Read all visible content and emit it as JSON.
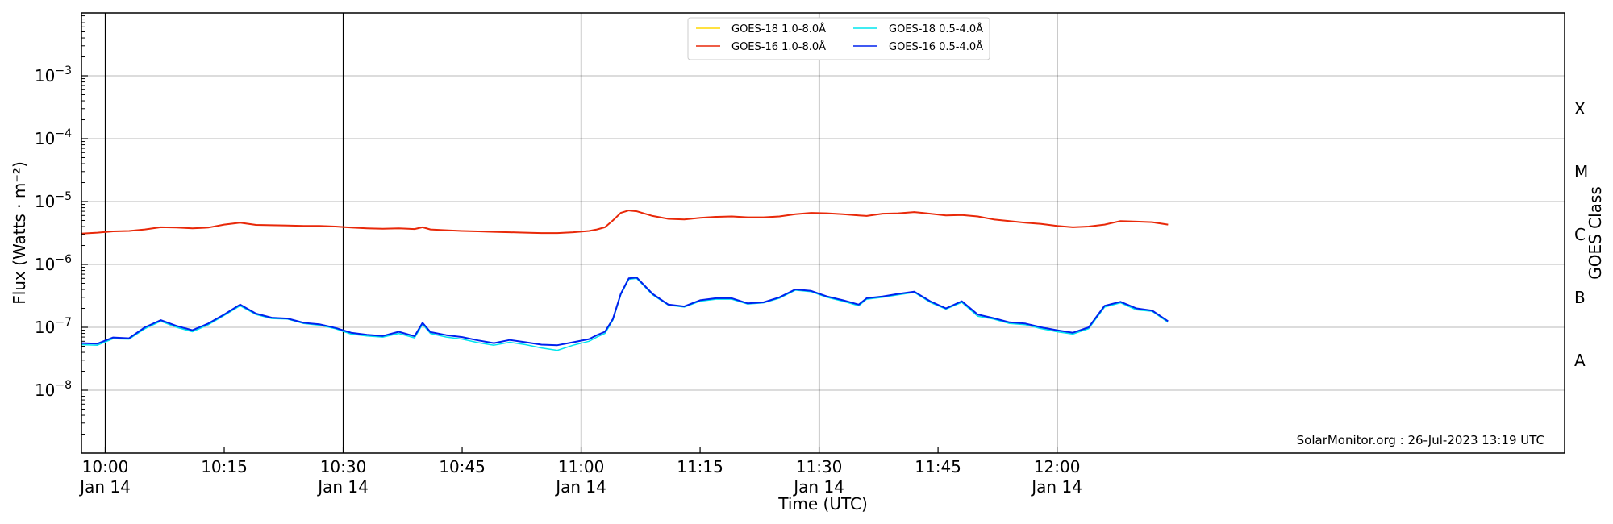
{
  "chart_data": {
    "type": "line",
    "xlabel": "Time (UTC)",
    "ylabel": "Flux (Watts · m⁻²)",
    "ylabel_right": "GOES Class",
    "y_scale": "log",
    "ylim": [
      1e-09,
      0.01
    ],
    "xlim": [
      "09:57",
      "13:04"
    ],
    "grid": "horizontal",
    "legend_position": "top-center",
    "credit": "SolarMonitor.org : 26-Jul-2023 13:19 UTC",
    "y_ticks": [
      {
        "value": 1e-08,
        "base": "10",
        "exp": "−8"
      },
      {
        "value": 1e-07,
        "base": "10",
        "exp": "−7"
      },
      {
        "value": 1e-06,
        "base": "10",
        "exp": "−6"
      },
      {
        "value": 1e-05,
        "base": "10",
        "exp": "−5"
      },
      {
        "value": 0.0001,
        "base": "10",
        "exp": "−4"
      },
      {
        "value": 0.001,
        "base": "10",
        "exp": "−3"
      }
    ],
    "x_ticks": [
      {
        "time": "10:00",
        "label": "10:00",
        "sublabel": "Jan 14",
        "vline": true
      },
      {
        "time": "10:15",
        "label": "10:15",
        "sublabel": "",
        "vline": false
      },
      {
        "time": "10:30",
        "label": "10:30",
        "sublabel": "Jan 14",
        "vline": true
      },
      {
        "time": "10:45",
        "label": "10:45",
        "sublabel": "",
        "vline": false
      },
      {
        "time": "11:00",
        "label": "11:00",
        "sublabel": "Jan 14",
        "vline": true
      },
      {
        "time": "11:15",
        "label": "11:15",
        "sublabel": "",
        "vline": false
      },
      {
        "time": "11:30",
        "label": "11:30",
        "sublabel": "Jan 14",
        "vline": true
      },
      {
        "time": "11:45",
        "label": "11:45",
        "sublabel": "",
        "vline": false
      },
      {
        "time": "12:00",
        "label": "12:00",
        "sublabel": "Jan 14",
        "vline": true
      }
    ],
    "class_labels": [
      {
        "label": "A",
        "level": 3e-08
      },
      {
        "label": "B",
        "level": 3e-07
      },
      {
        "label": "C",
        "level": 3e-06
      },
      {
        "label": "M",
        "level": 3e-05
      },
      {
        "label": "X",
        "level": 0.0003
      }
    ],
    "series": [
      {
        "name": "GOES-18 1.0-8.0Å",
        "color": "#ffd700",
        "width": 1.5,
        "x": [
          "09:57",
          "09:59",
          "10:01",
          "10:03",
          "10:05",
          "10:07",
          "10:09",
          "10:11",
          "10:13",
          "10:15",
          "10:17",
          "10:19",
          "10:21",
          "10:23",
          "10:25",
          "10:27",
          "10:29",
          "10:31",
          "10:33",
          "10:35",
          "10:37",
          "10:39",
          "10:40",
          "10:41",
          "10:43",
          "10:45",
          "10:47",
          "10:49",
          "10:51",
          "10:53",
          "10:55",
          "10:57",
          "10:59",
          "11:01",
          "11:02",
          "11:03",
          "11:04",
          "11:05",
          "11:06",
          "11:07",
          "11:09",
          "11:11",
          "11:13",
          "11:15",
          "11:17",
          "11:19",
          "11:21",
          "11:23",
          "11:25",
          "11:27",
          "11:29",
          "11:31",
          "11:33",
          "11:35",
          "11:36",
          "11:38",
          "11:40",
          "11:42",
          "11:44",
          "11:46",
          "11:48",
          "11:50",
          "11:52",
          "11:54",
          "11:56",
          "11:58",
          "12:00",
          "12:02",
          "12:04",
          "12:06",
          "12:08",
          "12:10",
          "12:12",
          "12:14"
        ],
        "values": [
          3.1e-06,
          3.2e-06,
          3.35e-06,
          3.4e-06,
          3.6e-06,
          3.9e-06,
          3.85e-06,
          3.75e-06,
          3.85e-06,
          4.3e-06,
          4.6e-06,
          4.25e-06,
          4.2e-06,
          4.15e-06,
          4.1e-06,
          4.1e-06,
          4e-06,
          3.85e-06,
          3.75e-06,
          3.7e-06,
          3.75e-06,
          3.65e-06,
          3.9e-06,
          3.6e-06,
          3.5e-06,
          3.4e-06,
          3.35e-06,
          3.3e-06,
          3.25e-06,
          3.2e-06,
          3.15e-06,
          3.15e-06,
          3.25e-06,
          3.4e-06,
          3.6e-06,
          3.9e-06,
          5e-06,
          6.6e-06,
          7.2e-06,
          7e-06,
          5.9e-06,
          5.3e-06,
          5.2e-06,
          5.5e-06,
          5.7e-06,
          5.8e-06,
          5.6e-06,
          5.6e-06,
          5.8e-06,
          6.3e-06,
          6.6e-06,
          6.5e-06,
          6.3e-06,
          6e-06,
          5.9e-06,
          6.4e-06,
          6.5e-06,
          6.8e-06,
          6.4e-06,
          6e-06,
          6.1e-06,
          5.8e-06,
          5.2e-06,
          4.9e-06,
          4.6e-06,
          4.4e-06,
          4.1e-06,
          3.9e-06,
          4e-06,
          4.3e-06,
          4.9e-06,
          4.8e-06,
          4.7e-06,
          4.3e-06
        ]
      },
      {
        "name": "GOES-16 1.0-8.0Å",
        "color": "#e8280a",
        "width": 2,
        "x": [
          "09:57",
          "09:59",
          "10:01",
          "10:03",
          "10:05",
          "10:07",
          "10:09",
          "10:11",
          "10:13",
          "10:15",
          "10:17",
          "10:19",
          "10:21",
          "10:23",
          "10:25",
          "10:27",
          "10:29",
          "10:31",
          "10:33",
          "10:35",
          "10:37",
          "10:39",
          "10:40",
          "10:41",
          "10:43",
          "10:45",
          "10:47",
          "10:49",
          "10:51",
          "10:53",
          "10:55",
          "10:57",
          "10:59",
          "11:01",
          "11:02",
          "11:03",
          "11:04",
          "11:05",
          "11:06",
          "11:07",
          "11:09",
          "11:11",
          "11:13",
          "11:15",
          "11:17",
          "11:19",
          "11:21",
          "11:23",
          "11:25",
          "11:27",
          "11:29",
          "11:31",
          "11:33",
          "11:35",
          "11:36",
          "11:38",
          "11:40",
          "11:42",
          "11:44",
          "11:46",
          "11:48",
          "11:50",
          "11:52",
          "11:54",
          "11:56",
          "11:58",
          "12:00",
          "12:02",
          "12:04",
          "12:06",
          "12:08",
          "12:10",
          "12:12",
          "12:14"
        ],
        "values": [
          3.1e-06,
          3.2e-06,
          3.35e-06,
          3.4e-06,
          3.6e-06,
          3.9e-06,
          3.85e-06,
          3.75e-06,
          3.85e-06,
          4.3e-06,
          4.6e-06,
          4.25e-06,
          4.2e-06,
          4.15e-06,
          4.1e-06,
          4.1e-06,
          4e-06,
          3.85e-06,
          3.75e-06,
          3.7e-06,
          3.75e-06,
          3.65e-06,
          3.9e-06,
          3.6e-06,
          3.5e-06,
          3.4e-06,
          3.35e-06,
          3.3e-06,
          3.25e-06,
          3.2e-06,
          3.15e-06,
          3.15e-06,
          3.25e-06,
          3.4e-06,
          3.6e-06,
          3.9e-06,
          5e-06,
          6.6e-06,
          7.2e-06,
          7e-06,
          5.9e-06,
          5.3e-06,
          5.2e-06,
          5.5e-06,
          5.7e-06,
          5.8e-06,
          5.6e-06,
          5.6e-06,
          5.8e-06,
          6.3e-06,
          6.6e-06,
          6.5e-06,
          6.3e-06,
          6e-06,
          5.9e-06,
          6.4e-06,
          6.5e-06,
          6.8e-06,
          6.4e-06,
          6e-06,
          6.1e-06,
          5.8e-06,
          5.2e-06,
          4.9e-06,
          4.6e-06,
          4.4e-06,
          4.1e-06,
          3.9e-06,
          4e-06,
          4.3e-06,
          4.9e-06,
          4.8e-06,
          4.7e-06,
          4.3e-06
        ]
      },
      {
        "name": "GOES-18 0.5-4.0Å",
        "color": "#00e5ee",
        "width": 1.5,
        "x": [
          "09:57",
          "09:59",
          "10:01",
          "10:03",
          "10:05",
          "10:07",
          "10:09",
          "10:11",
          "10:13",
          "10:15",
          "10:17",
          "10:19",
          "10:21",
          "10:23",
          "10:25",
          "10:27",
          "10:29",
          "10:31",
          "10:33",
          "10:35",
          "10:37",
          "10:39",
          "10:40",
          "10:41",
          "10:43",
          "10:45",
          "10:47",
          "10:49",
          "10:51",
          "10:53",
          "10:55",
          "10:57",
          "10:59",
          "11:01",
          "11:02",
          "11:03",
          "11:04",
          "11:05",
          "11:06",
          "11:07",
          "11:09",
          "11:11",
          "11:13",
          "11:15",
          "11:17",
          "11:19",
          "11:21",
          "11:23",
          "11:25",
          "11:27",
          "11:29",
          "11:31",
          "11:33",
          "11:35",
          "11:36",
          "11:38",
          "11:40",
          "11:42",
          "11:44",
          "11:46",
          "11:48",
          "11:50",
          "11:52",
          "11:54",
          "11:56",
          "11:58",
          "12:00",
          "12:02",
          "12:04",
          "12:06",
          "12:08",
          "12:10",
          "12:12",
          "12:14"
        ],
        "values": [
          5.3e-08,
          5.2e-08,
          6.6e-08,
          6.5e-08,
          9.5e-08,
          1.25e-07,
          1e-07,
          8.5e-08,
          1.1e-07,
          1.55e-07,
          2.2e-07,
          1.6e-07,
          1.38e-07,
          1.35e-07,
          1.15e-07,
          1.08e-07,
          9.5e-08,
          7.8e-08,
          7.3e-08,
          7e-08,
          8e-08,
          6.8e-08,
          1.12e-07,
          8e-08,
          7e-08,
          6.5e-08,
          5.7e-08,
          5.2e-08,
          5.8e-08,
          5.3e-08,
          4.7e-08,
          4.3e-08,
          5.2e-08,
          6e-08,
          7e-08,
          8e-08,
          1.3e-07,
          3.3e-07,
          5.8e-07,
          6e-07,
          3.3e-07,
          2.25e-07,
          2.1e-07,
          2.6e-07,
          2.8e-07,
          2.8e-07,
          2.35e-07,
          2.45e-07,
          2.9e-07,
          3.9e-07,
          3.7e-07,
          3e-07,
          2.6e-07,
          2.2e-07,
          2.8e-07,
          3e-07,
          3.3e-07,
          3.6e-07,
          2.5e-07,
          1.95e-07,
          2.5e-07,
          1.5e-07,
          1.35e-07,
          1.15e-07,
          1.1e-07,
          9.5e-08,
          8.5e-08,
          7.8e-08,
          9.5e-08,
          2.1e-07,
          2.45e-07,
          1.9e-07,
          1.8e-07,
          1.2e-07
        ]
      },
      {
        "name": "GOES-16 0.5-4.0Å",
        "color": "#0022ee",
        "width": 2,
        "x": [
          "09:57",
          "09:59",
          "10:01",
          "10:03",
          "10:05",
          "10:07",
          "10:09",
          "10:11",
          "10:13",
          "10:15",
          "10:17",
          "10:19",
          "10:21",
          "10:23",
          "10:25",
          "10:27",
          "10:29",
          "10:31",
          "10:33",
          "10:35",
          "10:37",
          "10:39",
          "10:40",
          "10:41",
          "10:43",
          "10:45",
          "10:47",
          "10:49",
          "10:51",
          "10:53",
          "10:55",
          "10:57",
          "10:59",
          "11:01",
          "11:02",
          "11:03",
          "11:04",
          "11:05",
          "11:06",
          "11:07",
          "11:09",
          "11:11",
          "11:13",
          "11:15",
          "11:17",
          "11:19",
          "11:21",
          "11:23",
          "11:25",
          "11:27",
          "11:29",
          "11:31",
          "11:33",
          "11:35",
          "11:36",
          "11:38",
          "11:40",
          "11:42",
          "11:44",
          "11:46",
          "11:48",
          "11:50",
          "11:52",
          "11:54",
          "11:56",
          "11:58",
          "12:00",
          "12:02",
          "12:04",
          "12:06",
          "12:08",
          "12:10",
          "12:12",
          "12:14"
        ],
        "values": [
          5.6e-08,
          5.5e-08,
          6.9e-08,
          6.7e-08,
          1e-07,
          1.3e-07,
          1.05e-07,
          9e-08,
          1.15e-07,
          1.6e-07,
          2.3e-07,
          1.65e-07,
          1.42e-07,
          1.38e-07,
          1.18e-07,
          1.12e-07,
          9.8e-08,
          8.2e-08,
          7.6e-08,
          7.3e-08,
          8.5e-08,
          7.2e-08,
          1.18e-07,
          8.4e-08,
          7.5e-08,
          7e-08,
          6.2e-08,
          5.6e-08,
          6.3e-08,
          5.8e-08,
          5.3e-08,
          5.2e-08,
          5.8e-08,
          6.5e-08,
          7.5e-08,
          8.5e-08,
          1.35e-07,
          3.4e-07,
          6e-07,
          6.2e-07,
          3.4e-07,
          2.3e-07,
          2.15e-07,
          2.7e-07,
          2.9e-07,
          2.9e-07,
          2.4e-07,
          2.5e-07,
          3e-07,
          4e-07,
          3.8e-07,
          3.1e-07,
          2.7e-07,
          2.3e-07,
          2.9e-07,
          3.1e-07,
          3.4e-07,
          3.7e-07,
          2.6e-07,
          2e-07,
          2.6e-07,
          1.6e-07,
          1.4e-07,
          1.2e-07,
          1.15e-07,
          1e-07,
          9e-08,
          8.2e-08,
          1e-07,
          2.2e-07,
          2.55e-07,
          2e-07,
          1.85e-07,
          1.25e-07
        ]
      }
    ]
  }
}
